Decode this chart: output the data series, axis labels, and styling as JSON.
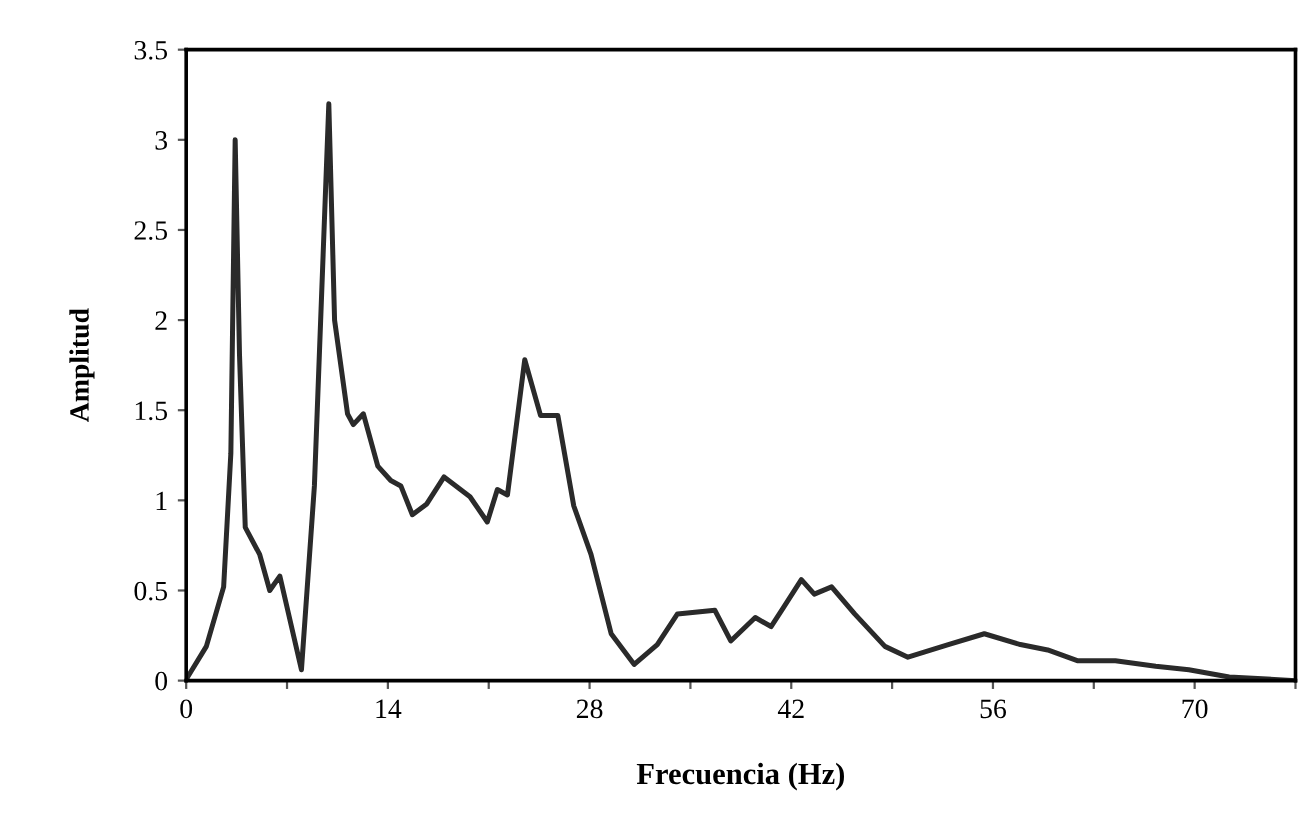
{
  "chart_data": {
    "type": "line",
    "xlabel": "Frecuencia (Hz)",
    "ylabel": "Amplitud",
    "x": [
      0,
      0.1,
      1.4,
      2.6,
      3.1,
      3.4,
      3.7,
      4.1,
      5.1,
      5.8,
      6.5,
      8.0,
      8.9,
      9.9,
      10.3,
      11.2,
      11.6,
      12.3,
      13.3,
      14.2,
      14.9,
      15.7,
      16.7,
      17.9,
      19.7,
      20.9,
      21.6,
      22.3,
      23.5,
      24.6,
      25.8,
      26.9,
      28.1,
      29.5,
      31.1,
      32.7,
      34.1,
      36.7,
      37.8,
      39.5,
      40.6,
      41.5,
      42.7,
      43.6,
      44.8,
      46.4,
      48.5,
      50.1,
      52.9,
      55.4,
      57.9,
      59.8,
      61.9,
      64.5,
      67.3,
      69.6,
      72.4,
      77
    ],
    "series": [
      {
        "color": "#2a2a2a",
        "values": [
          0,
          0.02,
          0.19,
          0.52,
          1.26,
          3.0,
          1.81,
          0.85,
          0.7,
          0.5,
          0.58,
          0.06,
          1.08,
          3.2,
          2.0,
          1.48,
          1.42,
          1.48,
          1.19,
          1.11,
          1.08,
          0.92,
          0.98,
          1.13,
          1.02,
          0.88,
          1.06,
          1.03,
          1.78,
          1.47,
          1.47,
          0.97,
          0.7,
          0.26,
          0.09,
          0.2,
          0.37,
          0.39,
          0.22,
          0.35,
          0.3,
          0.41,
          0.56,
          0.48,
          0.52,
          0.37,
          0.19,
          0.13,
          0.2,
          0.26,
          0.2,
          0.17,
          0.11,
          0.11,
          0.08,
          0.06,
          0.02,
          0
        ]
      }
    ],
    "xlim": [
      0,
      77
    ],
    "xticks": [
      0,
      {
        "value": 7,
        "label": null
      },
      14,
      {
        "value": 21,
        "label": null
      },
      28,
      {
        "value": 35,
        "label": null
      },
      42,
      {
        "value": 49,
        "label": null
      },
      56,
      {
        "value": 63,
        "label": null
      },
      70,
      {
        "value": 77,
        "label": null
      }
    ],
    "ylim": [
      0,
      3.5
    ],
    "yticks": [
      0,
      0.5,
      1,
      1.5,
      2,
      2.5,
      3,
      3.5
    ],
    "grid": false,
    "marker": "none",
    "line_style": "solid"
  }
}
